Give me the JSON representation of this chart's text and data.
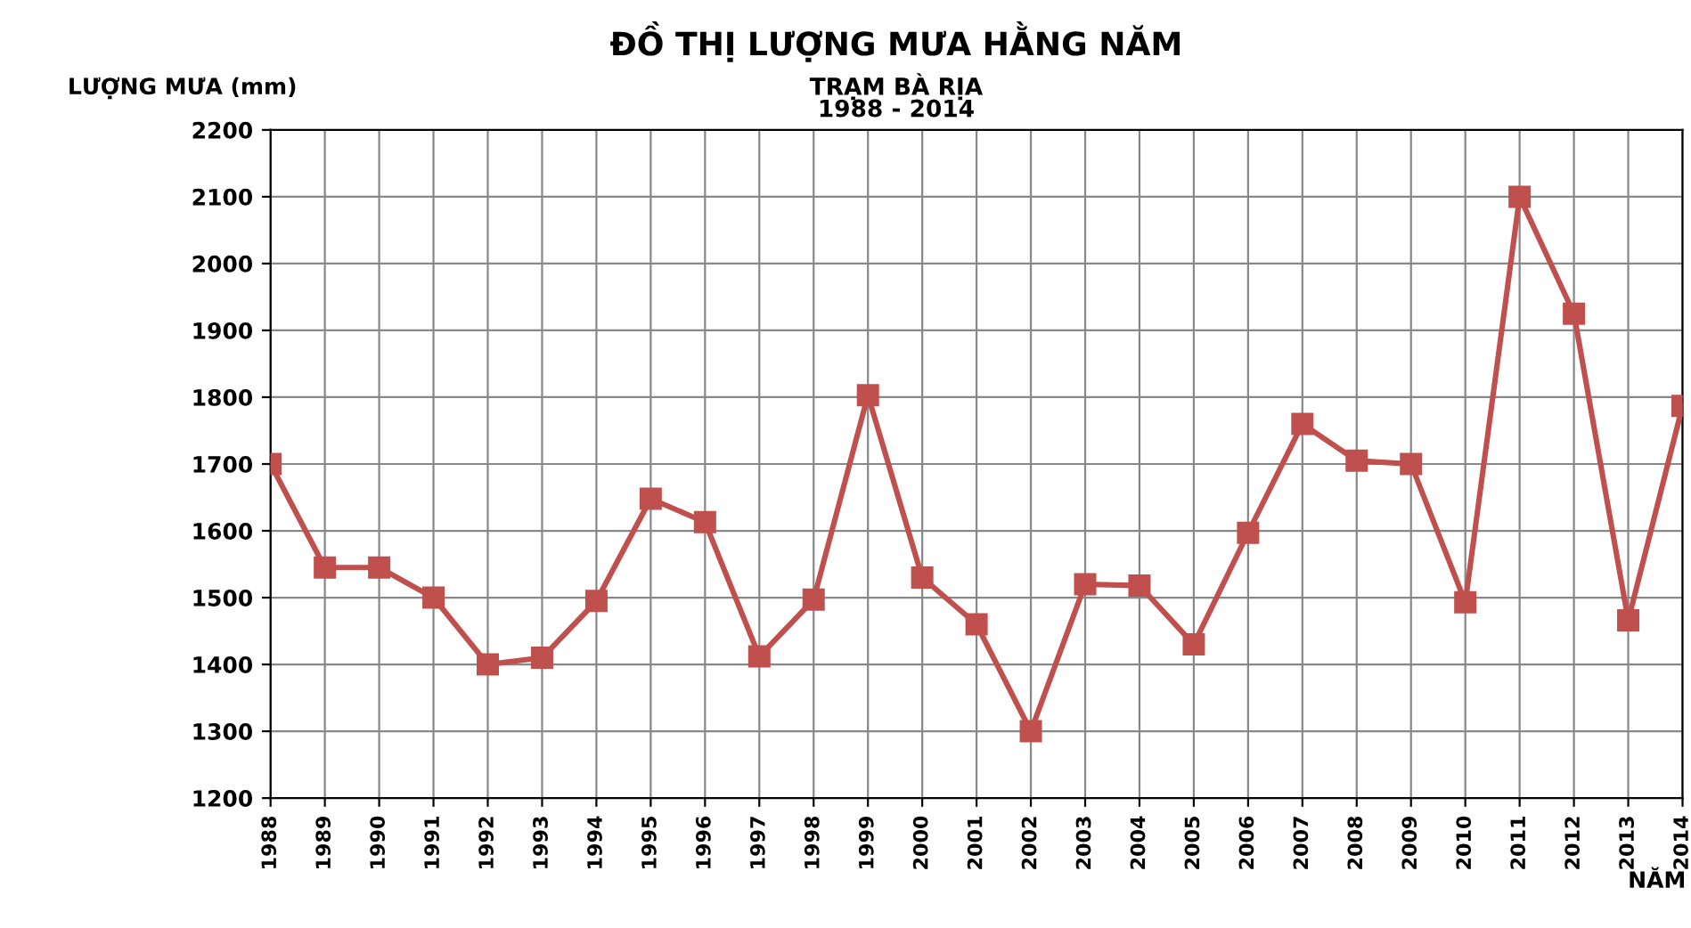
{
  "chart_data": {
    "type": "line",
    "title": "ĐỒ THỊ LƯỢNG MƯA HẰNG NĂM",
    "subtitle": "TRẠM BÀ RỊA\n1988 - 2014",
    "ylabel": "LƯỢNG MƯA (mm)",
    "xlabel": "NĂM",
    "categories": [
      "1988",
      "1989",
      "1990",
      "1991",
      "1992",
      "1993",
      "1994",
      "1995",
      "1996",
      "1997",
      "1998",
      "1999",
      "2000",
      "2001",
      "2002",
      "2003",
      "2004",
      "2005",
      "2006",
      "2007",
      "2008",
      "2009",
      "2010",
      "2011",
      "2012",
      "2013",
      "2014"
    ],
    "series": [
      {
        "color": "#c0504d",
        "values": [
          1700,
          1545,
          1545,
          1500,
          1400,
          1410,
          1495,
          1648,
          1613,
          1412,
          1497,
          1803,
          1530,
          1460,
          1300,
          1520,
          1518,
          1430,
          1597,
          1760,
          1705,
          1700,
          1493,
          2100,
          1925,
          1466,
          1787
        ]
      }
    ],
    "ylim": [
      1200,
      2200
    ],
    "yticks": [
      1200,
      1300,
      1400,
      1500,
      1600,
      1700,
      1800,
      1900,
      2000,
      2100,
      2200
    ],
    "grid": true,
    "marker": "square",
    "line_style": "solid",
    "legend": false
  }
}
